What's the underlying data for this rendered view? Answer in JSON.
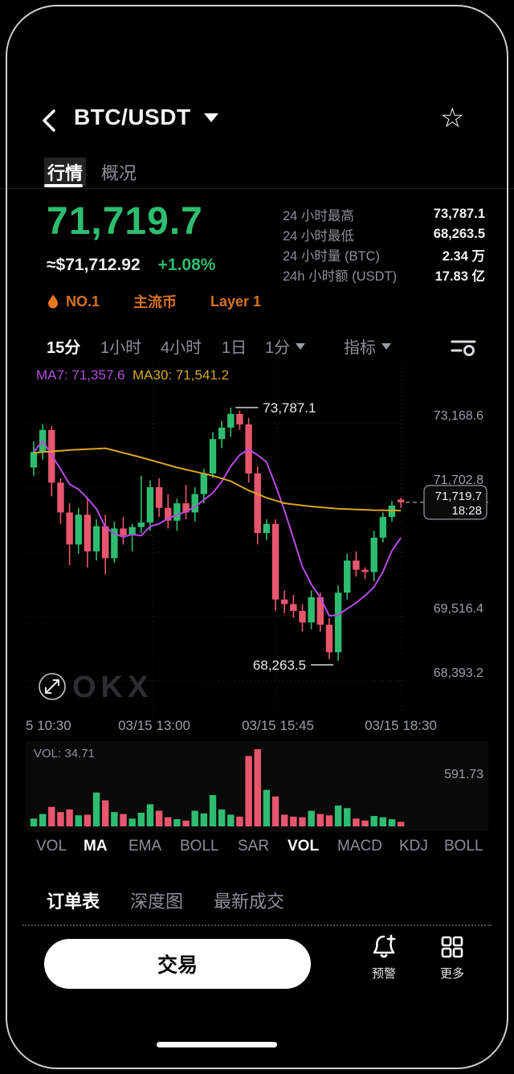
{
  "header": {
    "title": "BTC/USDT",
    "tabs": [
      {
        "label": "行情"
      },
      {
        "label": "概况"
      }
    ]
  },
  "price": {
    "last": "71,719.7",
    "fiat": "≈$71,712.92",
    "change": "+1.08%"
  },
  "stats": [
    {
      "label": "24 小时最高",
      "value": "73,787.1"
    },
    {
      "label": "24 小时最低",
      "value": "68,263.5"
    },
    {
      "label": "24 小时量 (BTC)",
      "value": "2.34 万"
    },
    {
      "label": "24h 小时额 (USDT)",
      "value": "17.83 亿"
    }
  ],
  "badges": {
    "rank": "NO.1",
    "tags": [
      "主流币",
      "Layer 1"
    ]
  },
  "timeframes": [
    {
      "label": "15分",
      "active": true
    },
    {
      "label": "1小时"
    },
    {
      "label": "4小时"
    },
    {
      "label": "1日"
    },
    {
      "label": "1分",
      "caret": true
    },
    {
      "label": "指标",
      "caret": true
    }
  ],
  "indicators": [
    {
      "label": "VOL"
    },
    {
      "label": "MA",
      "active": true
    },
    {
      "label": "EMA"
    },
    {
      "label": "BOLL"
    },
    {
      "label": "SAR"
    },
    {
      "label": "VOL",
      "active": true
    },
    {
      "label": "MACD"
    },
    {
      "label": "KDJ"
    },
    {
      "label": "BOLL"
    }
  ],
  "bottom_tabs": [
    {
      "label": "订单表",
      "active": true
    },
    {
      "label": "深度图"
    },
    {
      "label": "最新成交"
    }
  ],
  "actions": {
    "trade": "交易",
    "alert": "预警",
    "more": "更多"
  },
  "colors": {
    "up": "#2ebd70",
    "down": "#e8566d",
    "ma7": "#b44ce0",
    "ma30": "#d9a521",
    "grid": "#272b31",
    "axis_text": "#9aa0a8",
    "orange": "#d8731f"
  },
  "chart_data": {
    "type": "candlestick",
    "interval": "15分",
    "ma7_label": "MA7: 71,357.6",
    "ma30_label": "MA30: 71,541.2",
    "high_annotation": "73,787.1",
    "low_annotation": "68,263.5",
    "high_value": 73787.1,
    "low_value": 68263.5,
    "last_price": "71,719.7",
    "last_time": "18:28",
    "y_axis_labels": [
      "73,168.6",
      "71,702.8",
      "69,516.4",
      "68,393.2"
    ],
    "x_axis_labels": [
      "5 10:30",
      "03/15 13:00",
      "03/15 15:45",
      "03/15 18:30"
    ],
    "watermark": "OKX",
    "volume": {
      "label": "VOL: 34.71",
      "axis_max_label": "591.73",
      "max": 591.73
    },
    "candles": [
      [
        72480,
        73050,
        72300,
        72820,
        60
      ],
      [
        72820,
        73430,
        72650,
        73300,
        95
      ],
      [
        73300,
        73380,
        71850,
        72150,
        150
      ],
      [
        72150,
        72250,
        71250,
        71500,
        110
      ],
      [
        71500,
        71700,
        70350,
        70800,
        130
      ],
      [
        70800,
        71600,
        70600,
        71450,
        85
      ],
      [
        71450,
        71800,
        70300,
        70650,
        90
      ],
      [
        70650,
        71350,
        70450,
        71200,
        260
      ],
      [
        71200,
        71450,
        70150,
        70500,
        200
      ],
      [
        70500,
        71300,
        70400,
        71150,
        110
      ],
      [
        71150,
        71400,
        70800,
        71000,
        95
      ],
      [
        71000,
        71250,
        70650,
        71180,
        60
      ],
      [
        71180,
        72300,
        71050,
        71280,
        105
      ],
      [
        71280,
        72200,
        71100,
        72050,
        170
      ],
      [
        72050,
        72250,
        71400,
        71600,
        120
      ],
      [
        71600,
        71900,
        71150,
        71320,
        70
      ],
      [
        71320,
        71800,
        71100,
        71700,
        55
      ],
      [
        71700,
        72100,
        71350,
        71500,
        45
      ],
      [
        71500,
        72050,
        71300,
        71900,
        120
      ],
      [
        71900,
        72450,
        71700,
        72350,
        100
      ],
      [
        72350,
        73250,
        72250,
        73100,
        240
      ],
      [
        73100,
        73500,
        72900,
        73350,
        130
      ],
      [
        73350,
        73787.1,
        73150,
        73650,
        90
      ],
      [
        73650,
        73720,
        73300,
        73420,
        75
      ],
      [
        73420,
        73560,
        72150,
        72350,
        540
      ],
      [
        72350,
        72500,
        70800,
        71050,
        591.73
      ],
      [
        71050,
        71350,
        70900,
        71250,
        280
      ],
      [
        71250,
        71350,
        69350,
        69600,
        230
      ],
      [
        69600,
        69800,
        69300,
        69500,
        90
      ],
      [
        69500,
        69700,
        69200,
        69350,
        75
      ],
      [
        69350,
        69500,
        68900,
        69100,
        70
      ],
      [
        69100,
        69800,
        68950,
        69650,
        120
      ],
      [
        69650,
        69750,
        68900,
        69050,
        95
      ],
      [
        69050,
        69200,
        68300,
        68450,
        85
      ],
      [
        68450,
        69900,
        68263.5,
        69750,
        160
      ],
      [
        69750,
        70600,
        69600,
        70450,
        140
      ],
      [
        70450,
        70650,
        70100,
        70250,
        60
      ],
      [
        70250,
        70300,
        70050,
        70200,
        45
      ],
      [
        70200,
        71100,
        70000,
        70950,
        80
      ],
      [
        70950,
        71500,
        70850,
        71400,
        70
      ],
      [
        71400,
        71750,
        71300,
        71650,
        55
      ],
      [
        71780,
        71820,
        71600,
        71719.7,
        34.71
      ]
    ],
    "ma30_anchor_points": [
      [
        0,
        72800
      ],
      [
        4,
        72860
      ],
      [
        8,
        72900
      ],
      [
        12,
        72700
      ],
      [
        16,
        72480
      ],
      [
        20,
        72300
      ],
      [
        22,
        72180
      ],
      [
        24,
        71980
      ],
      [
        26,
        71820
      ],
      [
        28,
        71700
      ],
      [
        31,
        71630
      ],
      [
        34,
        71580
      ],
      [
        38,
        71550
      ],
      [
        41,
        71541.2
      ]
    ]
  }
}
